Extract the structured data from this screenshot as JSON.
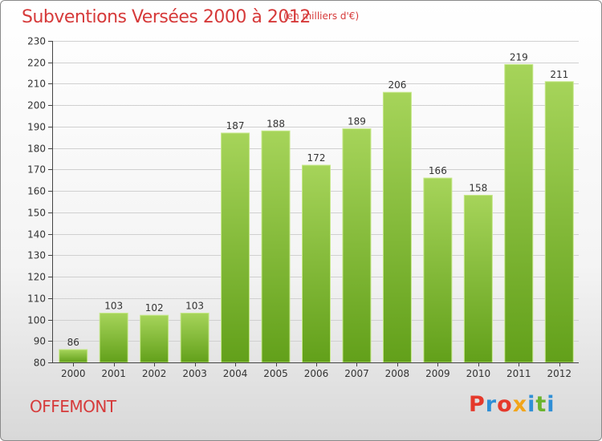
{
  "header": {
    "title": "Subventions Versées 2000 à 2012",
    "subtitle": "(en milliers d'€)"
  },
  "footer": {
    "place": "OFFEMONT",
    "logo": "Proxiti",
    "logo_colors": [
      "#e5392b",
      "#2f8fd6",
      "#e5392b",
      "#f2a51a",
      "#2f8fd6",
      "#6ab42d",
      "#2f8fd6"
    ]
  },
  "colors": {
    "bar_light": "#a6d45a",
    "bar_dark": "#62a01a",
    "title": "#d63a3a",
    "grid": "#d0d0d0",
    "axis": "#444444"
  },
  "chart_data": {
    "type": "bar",
    "title": "Subventions Versées 2000 à 2012",
    "subtitle": "(en milliers d'€)",
    "xlabel": "",
    "ylabel": "",
    "categories": [
      "2000",
      "2001",
      "2002",
      "2003",
      "2004",
      "2005",
      "2006",
      "2007",
      "2008",
      "2009",
      "2010",
      "2011",
      "2012"
    ],
    "values": [
      86,
      103,
      102,
      103,
      187,
      188,
      172,
      189,
      206,
      166,
      158,
      219,
      211
    ],
    "ylim": [
      80,
      230
    ],
    "yticks": [
      80,
      90,
      100,
      110,
      120,
      130,
      140,
      150,
      160,
      170,
      180,
      190,
      200,
      210,
      220,
      230
    ],
    "grid": true,
    "legend": "none"
  }
}
